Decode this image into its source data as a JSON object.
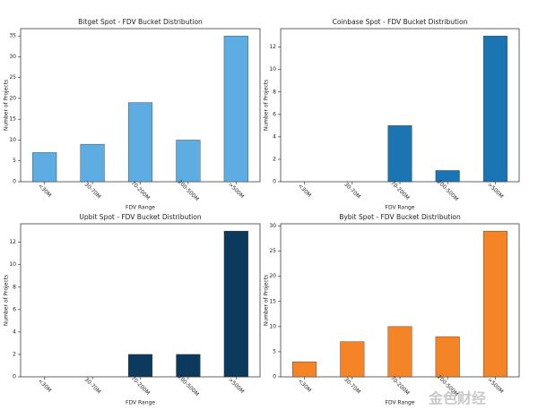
{
  "chart_data": [
    {
      "type": "bar",
      "title": "Bitget Spot - FDV Bucket Distribution",
      "x_label": "FDV Range",
      "y_label": "Number of Projects",
      "categories": [
        "<30M",
        "30-70M",
        "70-200M",
        "200-500M",
        ">500M"
      ],
      "values": [
        7,
        9,
        19,
        10,
        35
      ],
      "color": "#5dade2",
      "ylim": [
        0,
        36.75
      ],
      "yticks": [
        0,
        5,
        10,
        15,
        20,
        25,
        30,
        35
      ]
    },
    {
      "type": "bar",
      "title": "Coinbase Spot - FDV Bucket Distribution",
      "x_label": "FDV Range",
      "y_label": "Number of Projects",
      "categories": [
        "<30M",
        "30-70M",
        "70-200M",
        "200-500M",
        ">500M"
      ],
      "values": [
        0,
        0,
        5,
        1,
        13
      ],
      "color": "#1b75b3",
      "ylim": [
        0,
        13.65
      ],
      "yticks": [
        0,
        2,
        4,
        6,
        8,
        10,
        12
      ]
    },
    {
      "type": "bar",
      "title": "Upbit Spot - FDV Bucket Distribution",
      "x_label": "FDV Range",
      "y_label": "Number of Projects",
      "categories": [
        "<30M",
        "30-70M",
        "70-200M",
        "200-500M",
        ">500M"
      ],
      "values": [
        0,
        0,
        2,
        2,
        13
      ],
      "color": "#0b3a5c",
      "ylim": [
        0,
        13.65
      ],
      "yticks": [
        0,
        2,
        4,
        6,
        8,
        10,
        12
      ]
    },
    {
      "type": "bar",
      "title": "Bybit Spot - FDV Bucket Distribution",
      "x_label": "FDV Range",
      "y_label": "Number of Projects",
      "categories": [
        "<30M",
        "30-70M",
        "70-200M",
        "200-500M",
        ">500M"
      ],
      "values": [
        3,
        7,
        10,
        8,
        29
      ],
      "color": "#f58426",
      "ylim": [
        0,
        30.45
      ],
      "yticks": [
        0,
        5,
        10,
        15,
        20,
        25,
        30
      ]
    }
  ],
  "watermark": "金色财经"
}
